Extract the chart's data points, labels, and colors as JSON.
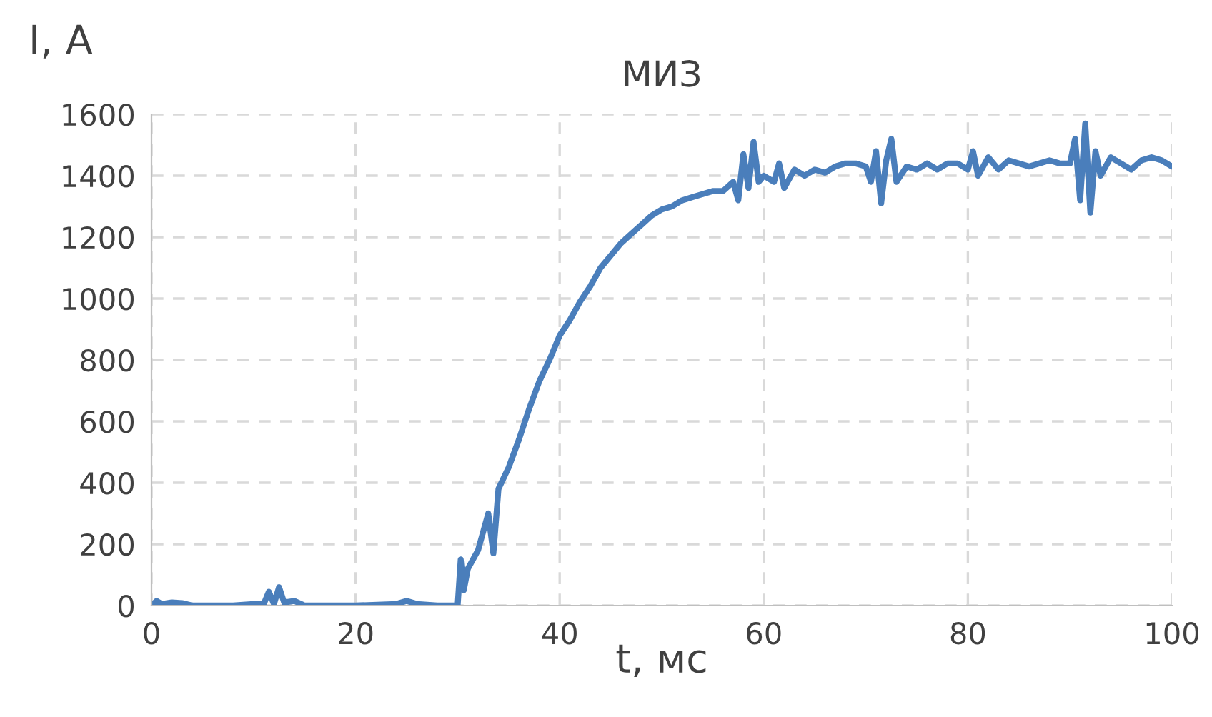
{
  "chart_data": {
    "type": "line",
    "title": "МИЗ",
    "xlabel": "t, мс",
    "ylabel": "I, A",
    "x": [
      0,
      0.5,
      1,
      2,
      3,
      4,
      8,
      10,
      11,
      11.5,
      12,
      12.5,
      13,
      14,
      15,
      20,
      24,
      25,
      26,
      28,
      30,
      30.3,
      30.6,
      31,
      32,
      33,
      33.5,
      34,
      35,
      36,
      37,
      38,
      39,
      40,
      41,
      42,
      43,
      44,
      45,
      46,
      47,
      48,
      49,
      50,
      51,
      52,
      53,
      54,
      55,
      56,
      57,
      57.5,
      58,
      58.5,
      59,
      59.5,
      60,
      61,
      61.5,
      62,
      63,
      64,
      65,
      66,
      67,
      68,
      69,
      70,
      70.5,
      71,
      71.5,
      72,
      72.5,
      73,
      74,
      75,
      76,
      77,
      78,
      79,
      80,
      80.5,
      81,
      82,
      83,
      84,
      85,
      86,
      87,
      88,
      89,
      90,
      90.5,
      91,
      91.5,
      92,
      92.5,
      93,
      94,
      95,
      96,
      97,
      98,
      99,
      100
    ],
    "series": [
      {
        "color": "#4a7ebb",
        "values": [
          0,
          15,
          5,
          10,
          8,
          0,
          0,
          5,
          5,
          45,
          5,
          60,
          10,
          15,
          0,
          0,
          5,
          15,
          5,
          0,
          0,
          150,
          50,
          120,
          180,
          300,
          170,
          380,
          450,
          540,
          640,
          730,
          800,
          880,
          930,
          990,
          1040,
          1100,
          1140,
          1180,
          1210,
          1240,
          1270,
          1290,
          1300,
          1320,
          1330,
          1340,
          1350,
          1350,
          1380,
          1320,
          1470,
          1360,
          1510,
          1380,
          1400,
          1380,
          1440,
          1360,
          1420,
          1400,
          1420,
          1410,
          1430,
          1440,
          1440,
          1430,
          1380,
          1480,
          1310,
          1450,
          1520,
          1380,
          1430,
          1420,
          1440,
          1420,
          1440,
          1440,
          1420,
          1480,
          1400,
          1460,
          1420,
          1450,
          1440,
          1430,
          1440,
          1450,
          1440,
          1440,
          1520,
          1320,
          1570,
          1280,
          1480,
          1400,
          1460,
          1440,
          1420,
          1450,
          1460,
          1450,
          1430
        ]
      }
    ],
    "xlim": [
      0,
      100
    ],
    "xticks": [
      0,
      20,
      40,
      60,
      80,
      100
    ],
    "ylim": [
      0,
      1600
    ],
    "yticks": [
      0,
      200,
      400,
      600,
      800,
      1000,
      1200,
      1400,
      1600
    ],
    "grid": true,
    "line_style": "solid",
    "marker": "none"
  }
}
